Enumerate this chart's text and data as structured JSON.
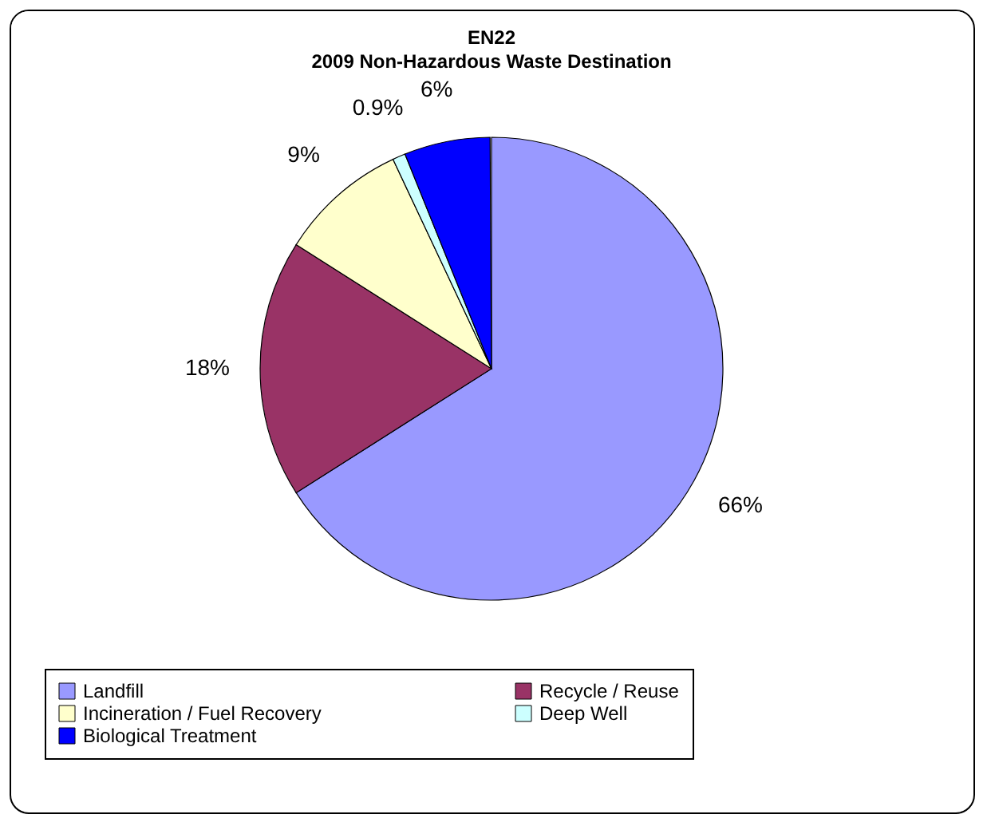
{
  "chart_data": {
    "type": "pie",
    "title": "EN22",
    "subtitle": "2009 Non-Hazardous Waste Destination",
    "categories": [
      "Landfill",
      "Recycle / Reuse",
      "Incineration / Fuel Recovery",
      "Deep Well",
      "Biological Treatment"
    ],
    "values": [
      66,
      18,
      9,
      0.9,
      6
    ],
    "value_labels": [
      "66%",
      "18%",
      "9%",
      "0.9%",
      "6%"
    ],
    "colors": [
      "#9999ff",
      "#993366",
      "#ffffcc",
      "#ccffff",
      "#0000ff"
    ],
    "legend": "bottom"
  }
}
